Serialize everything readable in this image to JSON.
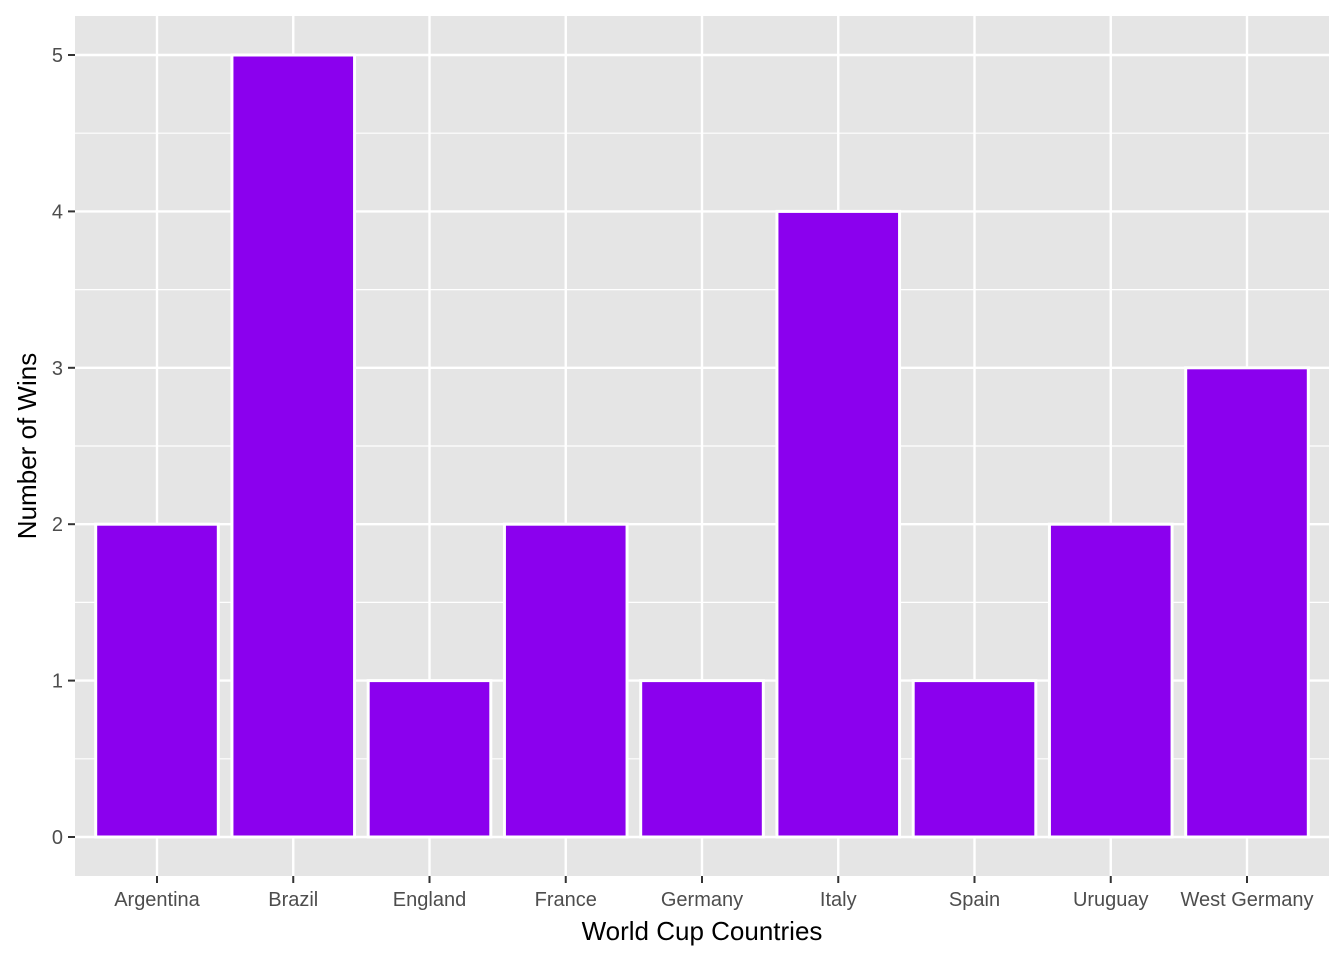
{
  "chart_data": {
    "type": "bar",
    "title": "",
    "xlabel": "World Cup Countries",
    "ylabel": "Number of Wins",
    "categories": [
      "Argentina",
      "Brazil",
      "England",
      "France",
      "Germany",
      "Italy",
      "Spain",
      "Uruguay",
      "West Germany"
    ],
    "values": [
      2,
      5,
      1,
      2,
      1,
      4,
      1,
      2,
      3
    ],
    "ylim": [
      0,
      5
    ],
    "yticks": [
      0,
      1,
      2,
      3,
      4,
      5
    ],
    "grid": true,
    "legend": "none",
    "colors": {
      "bar_fill": "#8B00EE",
      "bar_outline": "#FFFFFF",
      "panel_background": "#E5E5E5",
      "grid_line": "#FFFFFF"
    }
  }
}
